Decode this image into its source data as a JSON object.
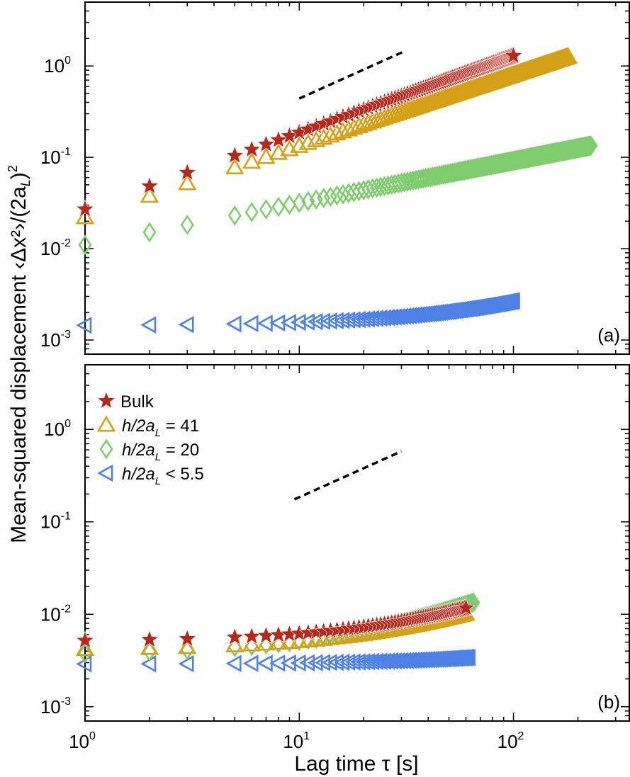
{
  "figure": {
    "ylabel_main": "Mean-squared displacement ",
    "ylabel_tail": "‹Δx²›/(2a",
    "ylabel_sub": "L",
    "ylabel_end": ")",
    "ylabel_sup": "2",
    "xlabel": "Lag time τ [s]"
  },
  "colors": {
    "bulk": "#b5281c",
    "h41": "#d4a017",
    "h20": "#7fcc6e",
    "h55": "#4f80e6"
  },
  "legend": [
    {
      "key": "bulk",
      "marker": "star",
      "prefix": "Bulk",
      "sub": "",
      "suffix": ""
    },
    {
      "key": "h41",
      "marker": "triangle-up",
      "prefix": "h/2a",
      "sub": "L",
      "suffix": " = 41"
    },
    {
      "key": "h20",
      "marker": "diamond",
      "prefix": "h/2a",
      "sub": "L",
      "suffix": " = 20"
    },
    {
      "key": "h55",
      "marker": "triangle-left",
      "prefix": "h/2a",
      "sub": "L",
      "suffix": " < 5.5"
    }
  ],
  "x_ticks": [
    {
      "value": 1,
      "base": "10",
      "exp": "0"
    },
    {
      "value": 10,
      "base": "10",
      "exp": "1"
    },
    {
      "value": 100,
      "base": "10",
      "exp": "2"
    }
  ],
  "y_ticks": [
    {
      "value": 0.001,
      "base": "10",
      "exp": "-3"
    },
    {
      "value": 0.01,
      "base": "10",
      "exp": "-2"
    },
    {
      "value": 0.1,
      "base": "10",
      "exp": "-1"
    },
    {
      "value": 1,
      "base": "10",
      "exp": "0"
    }
  ],
  "chart_data": [
    {
      "type": "scatter",
      "panel_label": "(a)",
      "xscale": "log",
      "yscale": "log",
      "xlim": [
        1,
        350
      ],
      "ylim": [
        0.0007,
        5
      ],
      "grid": false,
      "guide_line": {
        "x": [
          10,
          31
        ],
        "y": [
          0.44,
          1.45
        ],
        "style": "dashed"
      },
      "series": [
        {
          "name": "Bulk",
          "color_key": "bulk",
          "marker": "star",
          "tau_max": 100,
          "mode": "power",
          "a": 0.027,
          "b": 0.84
        },
        {
          "name": "h/2a_L = 41",
          "color_key": "h41",
          "marker": "triangle-up",
          "tau_max": 180,
          "mode": "power",
          "a": 0.022,
          "b": 0.78
        },
        {
          "name": "h/2a_L = 20",
          "color_key": "h20",
          "marker": "diamond",
          "tau_max": 230,
          "mode": "power",
          "a": 0.011,
          "b": 0.46
        },
        {
          "name": "h/2a_L < 5.5",
          "color_key": "h55",
          "marker": "triangle-left",
          "tau_max": 100,
          "mode": "flat",
          "a": 0.00145,
          "c": 1.25e-05
        }
      ]
    },
    {
      "type": "scatter",
      "panel_label": "(b)",
      "xscale": "log",
      "yscale": "log",
      "xlim": [
        1,
        350
      ],
      "ylim": [
        0.0007,
        5
      ],
      "grid": false,
      "guide_line": {
        "x": [
          9.5,
          30
        ],
        "y": [
          0.175,
          0.58
        ],
        "style": "dashed"
      },
      "series": [
        {
          "name": "Bulk",
          "color_key": "bulk",
          "marker": "star",
          "tau_max": 60,
          "mode": "flat",
          "a": 0.0052,
          "c": 0.00011
        },
        {
          "name": "h/2a_L = 41",
          "color_key": "h41",
          "marker": "triangle-up",
          "tau_max": 60,
          "mode": "flat",
          "a": 0.0042,
          "c": 0.0001
        },
        {
          "name": "h/2a_L = 20",
          "color_key": "h20",
          "marker": "diamond",
          "tau_max": 65,
          "mode": "flat",
          "a": 0.0038,
          "c": 0.00015
        },
        {
          "name": "h/2a_L < 5.5",
          "color_key": "h55",
          "marker": "triangle-left",
          "tau_max": 62,
          "mode": "flat",
          "a": 0.0029,
          "c": 8.5e-06
        }
      ]
    }
  ]
}
